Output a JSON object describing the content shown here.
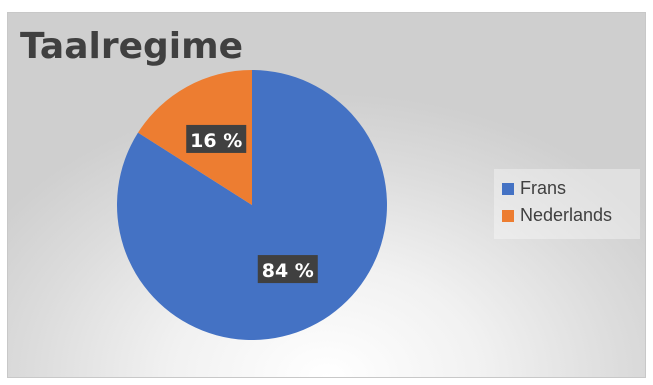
{
  "chart_data": {
    "type": "pie",
    "title": "Taalregime",
    "categories": [
      "Frans",
      "Nederlands"
    ],
    "values": [
      84,
      16
    ],
    "data_labels": [
      "84 %",
      "16 %"
    ],
    "colors": [
      "#4472c4",
      "#ed7d31"
    ],
    "legend_position": "right"
  }
}
